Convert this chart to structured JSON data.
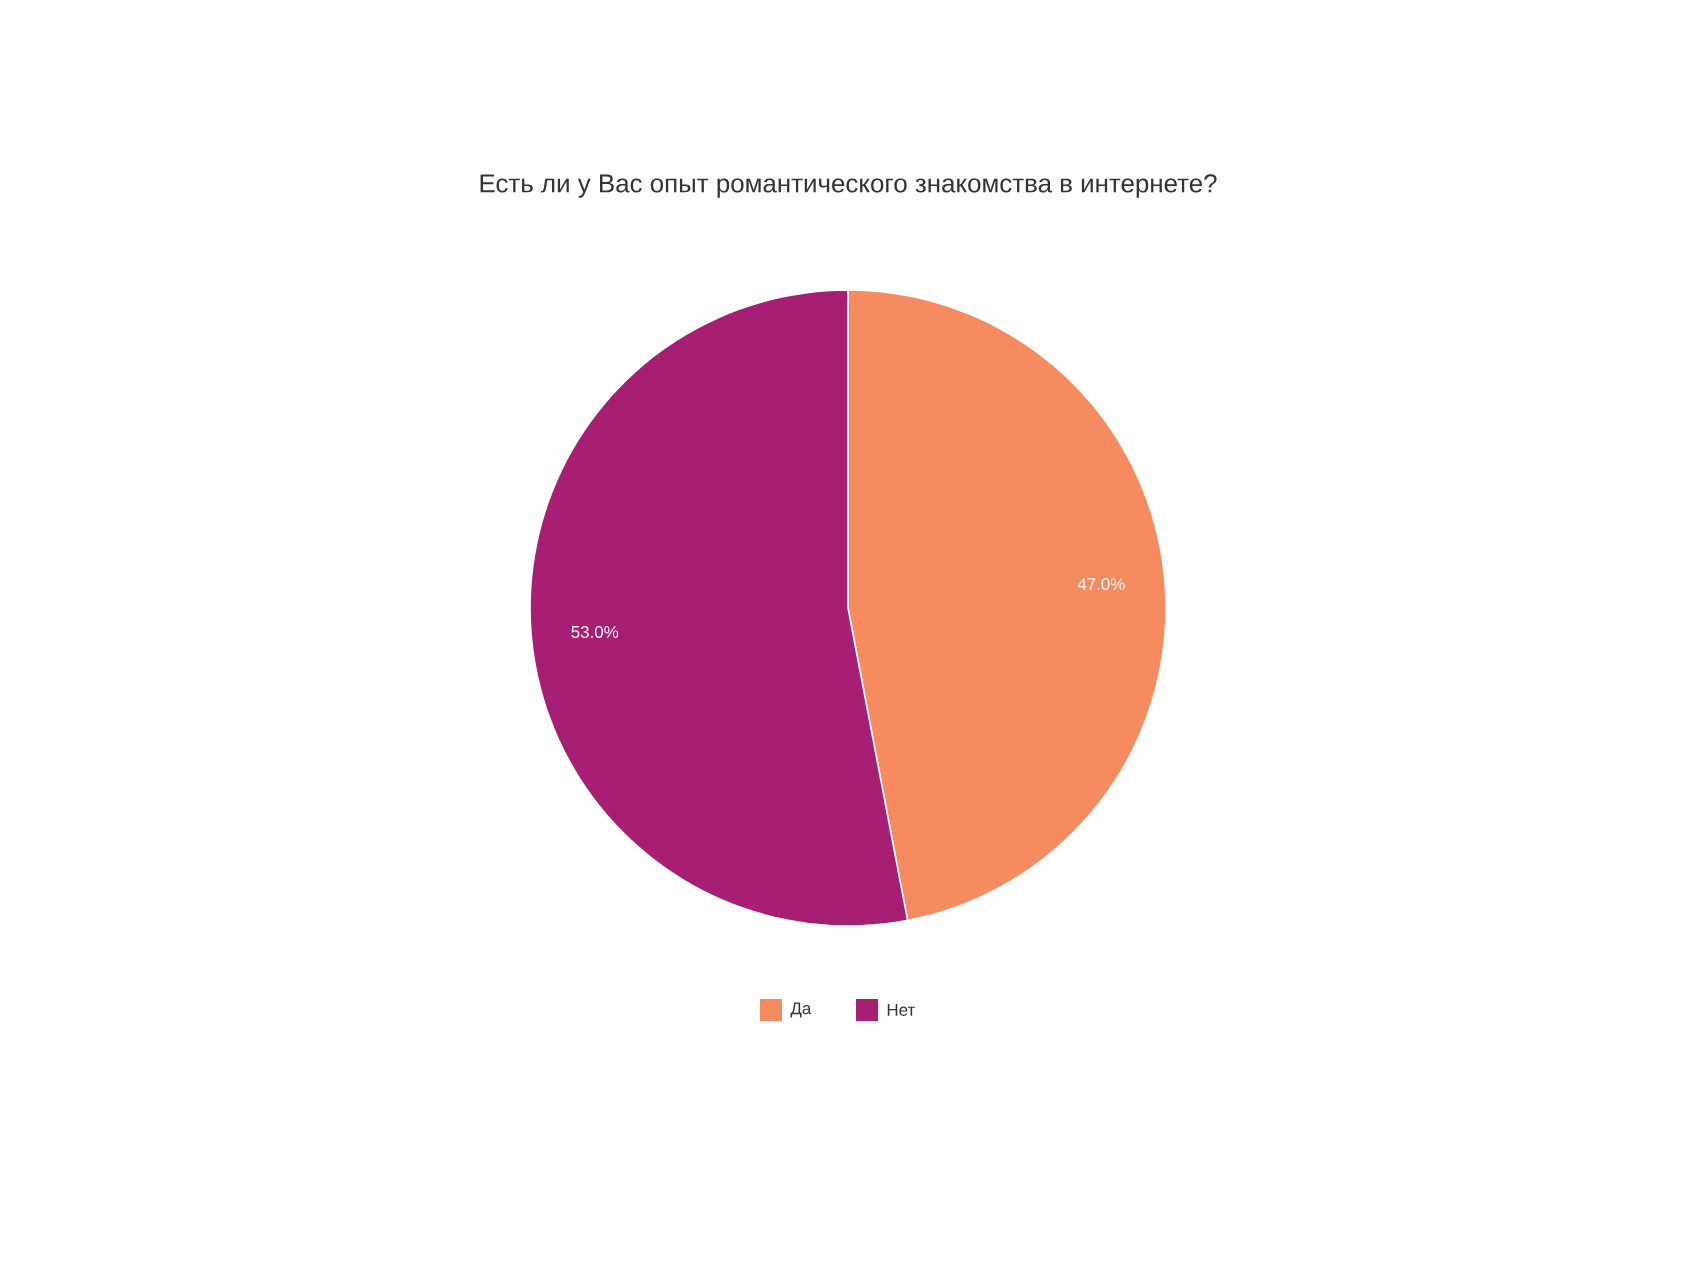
{
  "chart_data": {
    "type": "pie",
    "title": "Есть ли у Вас опыт романтического знакомства в интернете?",
    "categories": [
      "Да",
      "Нет"
    ],
    "values": [
      47.0,
      53.0
    ],
    "colors": [
      "#f58b5e",
      "#a61f75"
    ],
    "value_labels": [
      "47.0%",
      "53.0%"
    ],
    "legend": "bottom"
  }
}
